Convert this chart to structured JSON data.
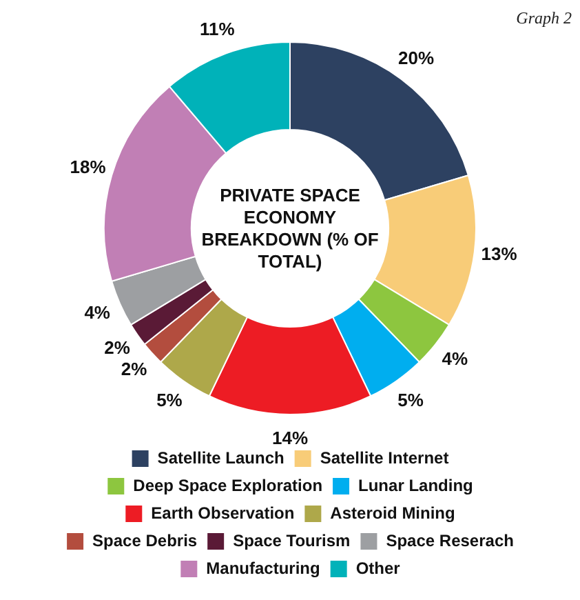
{
  "chart_data": {
    "type": "donut",
    "title": "PRIVATE SPACE ECONOMY BREAKDOWN (% OF TOTAL)",
    "annotations": [
      "Graph 2"
    ],
    "categories": [
      "Satellite Launch",
      "Satellite Internet",
      "Deep Space Exploration",
      "Lunar Landing",
      "Earth Observation",
      "Asteroid Mining",
      "Space Debris",
      "Space Tourism",
      "Space Reserach",
      "Manufacturing",
      "Other"
    ],
    "values": [
      20,
      13,
      4,
      5,
      14,
      5,
      2,
      2,
      4,
      18,
      11
    ],
    "value_labels": [
      "20%",
      "13%",
      "4%",
      "5%",
      "14%",
      "5%",
      "2%",
      "2%",
      "4%",
      "18%",
      "11%"
    ],
    "colors": [
      "#2d4161",
      "#f8cc78",
      "#8dc63f",
      "#00aeef",
      "#ed1c24",
      "#aea84a",
      "#b34d3e",
      "#5a1a36",
      "#9d9fa2",
      "#c17fb5",
      "#00b2b9"
    ],
    "legend": "bottom"
  }
}
